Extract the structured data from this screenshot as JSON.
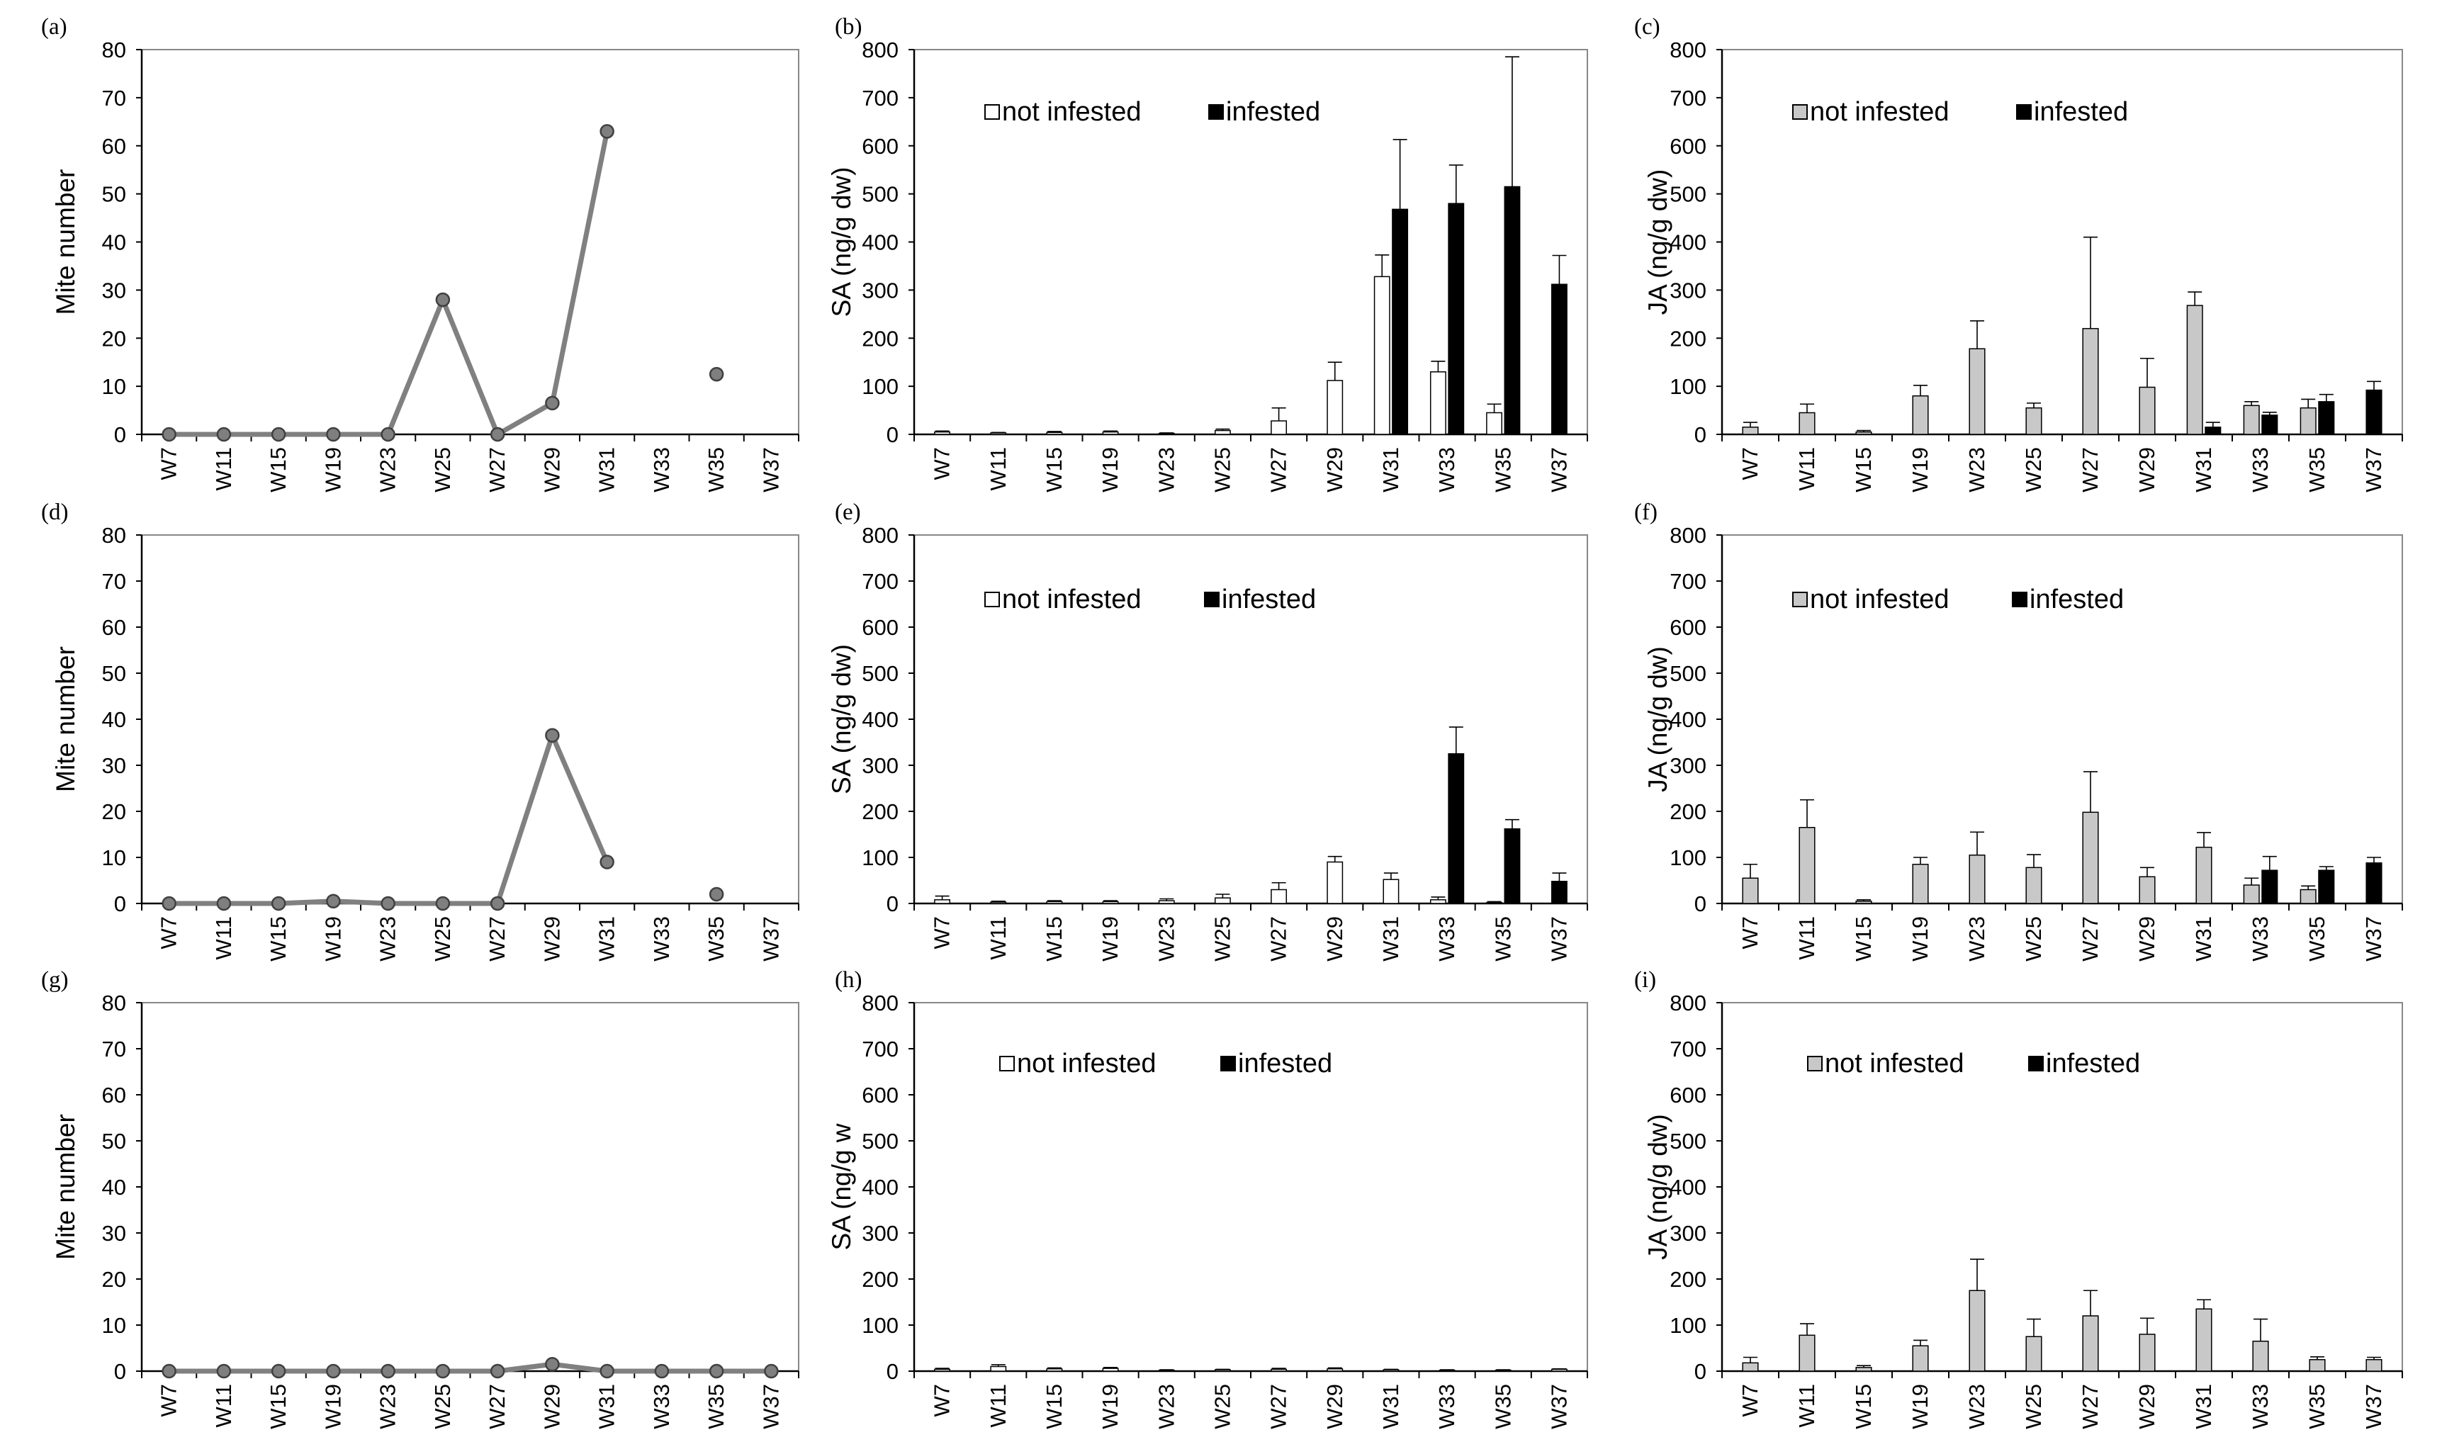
{
  "colors": {
    "line": "#808080",
    "marker_fill": "#7f7f7f",
    "not_infested_b_e_h": "#ffffff",
    "not_infested_c_f_i": "#c8c8c8",
    "infested": "#000000",
    "axis": "#000000",
    "frame": "#888888"
  },
  "chart_data": [
    {
      "panel": "(a)",
      "type": "line",
      "ylabel": "Mite number",
      "ylim": [
        0,
        80
      ],
      "yticks": [
        0,
        10,
        20,
        30,
        40,
        50,
        60,
        70,
        80
      ],
      "categories": [
        "W7",
        "W11",
        "W15",
        "W19",
        "W23",
        "W25",
        "W27",
        "W29",
        "W31",
        "W33",
        "W35",
        "W37"
      ],
      "series": [
        {
          "name": "Mite number",
          "values": [
            0,
            0,
            0,
            0,
            0,
            28,
            0,
            6.5,
            63,
            null,
            12.5,
            null
          ]
        }
      ]
    },
    {
      "panel": "(b)",
      "type": "bar",
      "ylabel": "SA (ng/g dw)",
      "ylim": [
        0,
        800
      ],
      "yticks": [
        0,
        100,
        200,
        300,
        400,
        500,
        600,
        700,
        800
      ],
      "categories": [
        "W7",
        "W11",
        "W15",
        "W19",
        "W23",
        "W25",
        "W27",
        "W29",
        "W31",
        "W33",
        "W35",
        "W37"
      ],
      "legend": [
        "not infested",
        "infested"
      ],
      "series": [
        {
          "name": "not infested",
          "values": [
            5,
            3,
            4,
            5,
            2,
            8,
            28,
            112,
            328,
            130,
            45,
            null
          ],
          "errors": [
            2,
            1,
            2,
            2,
            1,
            3,
            27,
            38,
            45,
            22,
            18,
            null
          ]
        },
        {
          "name": "infested",
          "values": [
            null,
            null,
            null,
            null,
            null,
            null,
            null,
            null,
            468,
            480,
            515,
            312
          ],
          "errors": [
            null,
            null,
            null,
            null,
            null,
            null,
            null,
            null,
            145,
            80,
            270,
            60
          ]
        }
      ]
    },
    {
      "panel": "(c)",
      "type": "bar",
      "ylabel": "JA (ng/g dw)",
      "ylim": [
        0,
        800
      ],
      "yticks": [
        0,
        100,
        200,
        300,
        400,
        500,
        600,
        700,
        800
      ],
      "categories": [
        "W7",
        "W11",
        "W15",
        "W19",
        "W23",
        "W25",
        "W27",
        "W29",
        "W31",
        "W33",
        "W35",
        "W37"
      ],
      "legend": [
        "not infested",
        "infested"
      ],
      "series": [
        {
          "name": "not infested",
          "values": [
            15,
            45,
            5,
            80,
            178,
            55,
            220,
            98,
            268,
            60,
            55,
            null
          ],
          "errors": [
            10,
            18,
            3,
            22,
            58,
            10,
            190,
            60,
            28,
            8,
            18,
            null
          ]
        },
        {
          "name": "infested",
          "values": [
            null,
            null,
            null,
            null,
            null,
            null,
            null,
            null,
            15,
            40,
            68,
            92
          ],
          "errors": [
            null,
            null,
            null,
            null,
            null,
            null,
            null,
            null,
            10,
            6,
            15,
            18
          ]
        }
      ]
    },
    {
      "panel": "(d)",
      "type": "line",
      "ylabel": "Mite number",
      "ylim": [
        0,
        80
      ],
      "yticks": [
        0,
        10,
        20,
        30,
        40,
        50,
        60,
        70,
        80
      ],
      "categories": [
        "W7",
        "W11",
        "W15",
        "W19",
        "W23",
        "W25",
        "W27",
        "W29",
        "W31",
        "W33",
        "W35",
        "W37"
      ],
      "series": [
        {
          "name": "Mite number",
          "values": [
            0,
            0,
            0,
            0.5,
            0,
            0,
            0,
            36.5,
            9,
            null,
            2,
            null
          ]
        }
      ]
    },
    {
      "panel": "(e)",
      "type": "bar",
      "ylabel": "SA (ng/g dw)",
      "ylim": [
        0,
        800
      ],
      "yticks": [
        0,
        100,
        200,
        300,
        400,
        500,
        600,
        700,
        800
      ],
      "categories": [
        "W7",
        "W11",
        "W15",
        "W19",
        "W23",
        "W25",
        "W27",
        "W29",
        "W31",
        "W33",
        "W35",
        "W37"
      ],
      "legend": [
        "not infested",
        "infested"
      ],
      "series": [
        {
          "name": "not infested",
          "values": [
            8,
            3,
            4,
            4,
            6,
            12,
            30,
            90,
            52,
            8,
            2,
            null
          ],
          "errors": [
            8,
            2,
            2,
            2,
            4,
            8,
            15,
            12,
            14,
            6,
            2,
            null
          ]
        },
        {
          "name": "infested",
          "values": [
            null,
            null,
            null,
            null,
            null,
            null,
            null,
            null,
            null,
            325,
            162,
            48
          ],
          "errors": [
            null,
            null,
            null,
            null,
            null,
            null,
            null,
            null,
            null,
            58,
            20,
            18
          ]
        }
      ]
    },
    {
      "panel": "(f)",
      "type": "bar",
      "ylabel": "JA (ng/g dw)",
      "ylim": [
        0,
        800
      ],
      "yticks": [
        0,
        100,
        200,
        300,
        400,
        500,
        600,
        700,
        800
      ],
      "categories": [
        "W7",
        "W11",
        "W15",
        "W19",
        "W23",
        "W25",
        "W27",
        "W29",
        "W31",
        "W33",
        "W35",
        "W37"
      ],
      "legend": [
        "not infested",
        "infested"
      ],
      "series": [
        {
          "name": "not infested",
          "values": [
            55,
            165,
            5,
            85,
            105,
            78,
            198,
            58,
            122,
            40,
            30,
            null
          ],
          "errors": [
            30,
            60,
            3,
            15,
            50,
            28,
            88,
            20,
            32,
            15,
            8,
            null
          ]
        },
        {
          "name": "infested",
          "values": [
            null,
            null,
            null,
            null,
            null,
            null,
            null,
            null,
            null,
            72,
            72,
            88
          ],
          "errors": [
            null,
            null,
            null,
            null,
            null,
            null,
            null,
            null,
            null,
            30,
            8,
            12
          ]
        }
      ]
    },
    {
      "panel": "(g)",
      "type": "line",
      "ylabel": "Mite number",
      "ylim": [
        0,
        80
      ],
      "yticks": [
        0,
        10,
        20,
        30,
        40,
        50,
        60,
        70,
        80
      ],
      "categories": [
        "W7",
        "W11",
        "W15",
        "W19",
        "W23",
        "W25",
        "W27",
        "W29",
        "W31",
        "W33",
        "W35",
        "W37"
      ],
      "series": [
        {
          "name": "Mite number",
          "values": [
            0,
            0,
            0,
            0,
            0,
            0,
            0,
            1.5,
            0,
            0,
            0,
            0
          ]
        }
      ]
    },
    {
      "panel": "(h)",
      "type": "bar",
      "ylabel": "SA (ng/g w",
      "ylim": [
        0,
        800
      ],
      "yticks": [
        0,
        100,
        200,
        300,
        400,
        500,
        600,
        700,
        800
      ],
      "categories": [
        "W7",
        "W11",
        "W15",
        "W19",
        "W23",
        "W25",
        "W27",
        "W29",
        "W31",
        "W33",
        "W35",
        "W37"
      ],
      "legend": [
        "not infested",
        "infested"
      ],
      "series": [
        {
          "name": "not infested",
          "values": [
            4,
            10,
            5,
            6,
            2,
            3,
            4,
            5,
            3,
            2,
            2,
            4
          ],
          "errors": [
            2,
            4,
            2,
            2,
            1,
            1,
            2,
            2,
            1,
            1,
            1,
            1
          ]
        },
        {
          "name": "infested",
          "values": [
            null,
            null,
            null,
            null,
            null,
            null,
            null,
            null,
            null,
            null,
            null,
            null
          ],
          "errors": [
            null,
            null,
            null,
            null,
            null,
            null,
            null,
            null,
            null,
            null,
            null,
            null
          ]
        }
      ]
    },
    {
      "panel": "(i)",
      "type": "bar",
      "ylabel": "JA (ng/g dw)",
      "ylim": [
        0,
        800
      ],
      "yticks": [
        0,
        100,
        200,
        300,
        400,
        500,
        600,
        700,
        800
      ],
      "categories": [
        "W7",
        "W11",
        "W15",
        "W19",
        "W23",
        "W25",
        "W27",
        "W29",
        "W31",
        "W33",
        "W35",
        "W37"
      ],
      "legend": [
        "not infested",
        "infested"
      ],
      "series": [
        {
          "name": "not infested",
          "values": [
            18,
            78,
            8,
            55,
            175,
            75,
            120,
            80,
            135,
            65,
            25,
            25
          ],
          "errors": [
            12,
            25,
            4,
            12,
            68,
            38,
            55,
            35,
            20,
            48,
            6,
            5
          ]
        },
        {
          "name": "infested",
          "values": [
            null,
            null,
            null,
            null,
            null,
            null,
            null,
            null,
            null,
            null,
            null,
            null
          ],
          "errors": [
            null,
            null,
            null,
            null,
            null,
            null,
            null,
            null,
            null,
            null,
            null,
            null
          ]
        }
      ]
    }
  ]
}
